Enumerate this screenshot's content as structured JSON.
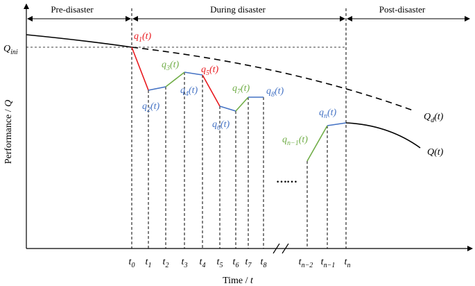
{
  "phases": {
    "pre": "Pre-disaster",
    "during": "During disaster",
    "post": "Post-disaster"
  },
  "axes": {
    "y_title": "Performance / Q",
    "x_title": "Time / t"
  },
  "q_ini_label": "Q_ini",
  "curve_labels": {
    "qd": "Q_d(t)",
    "q": "Q(t)"
  },
  "segment_labels": [
    {
      "id": "q1",
      "text": "q_1(t)",
      "color": "#e8191e"
    },
    {
      "id": "q2",
      "text": "q_2(t)",
      "color": "#4472c4"
    },
    {
      "id": "q3",
      "text": "q_3(t)",
      "color": "#70ad47"
    },
    {
      "id": "q4",
      "text": "q_4(t)",
      "color": "#4472c4"
    },
    {
      "id": "q5",
      "text": "q_5(t)",
      "color": "#e8191e"
    },
    {
      "id": "q6",
      "text": "q_6(t)",
      "color": "#4472c4"
    },
    {
      "id": "q7",
      "text": "q_7(t)",
      "color": "#70ad47"
    },
    {
      "id": "q8",
      "text": "q_8(t)",
      "color": "#4472c4"
    },
    {
      "id": "qn1",
      "text": "q_{n-1}(t)",
      "color": "#70ad47"
    },
    {
      "id": "qn",
      "text": "q_n(t)",
      "color": "#4472c4"
    }
  ],
  "time_ticks": [
    "t_0",
    "t_1",
    "t_2",
    "t_3",
    "t_4",
    "t_5",
    "t_6",
    "t_7",
    "t_8",
    "t_{n-2}",
    "t_{n-1}",
    "t_n"
  ],
  "ellipsis": "……",
  "colors": {
    "red": "#e8191e",
    "blue": "#4472c4",
    "green": "#70ad47",
    "ink": "#000000"
  }
}
